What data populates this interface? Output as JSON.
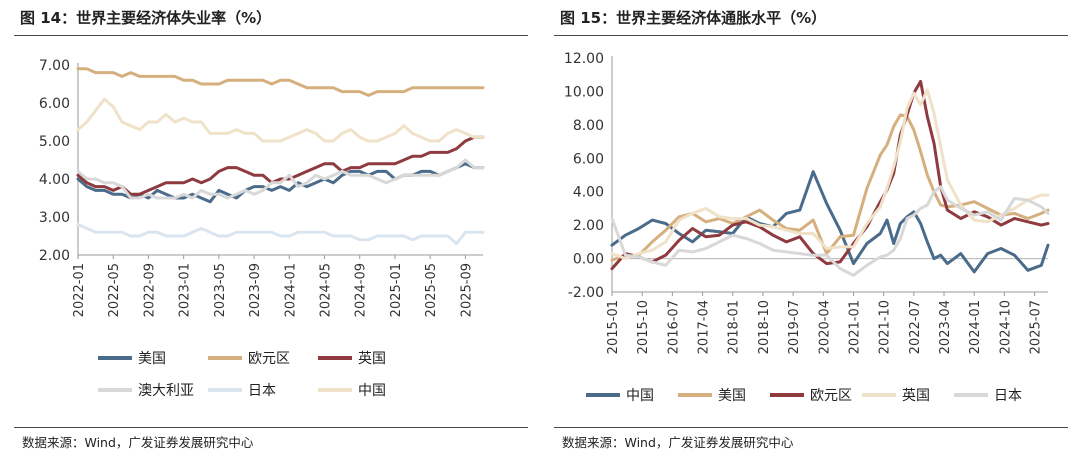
{
  "chart_data": [
    {
      "type": "line",
      "title": "图 14：世界主要经济体失业率（%）",
      "source": "数据来源：Wind，广发证券发展研究中心",
      "xlabel": "",
      "ylabel": "",
      "ylim": [
        2.0,
        7.0
      ],
      "yticks": [
        "7.00",
        "6.00",
        "5.00",
        "4.00",
        "3.00",
        "2.00"
      ],
      "ytick_values": [
        7,
        6,
        5,
        4,
        3,
        2
      ],
      "xticks": [
        "2022-01",
        "2022-05",
        "2022-09",
        "2023-01",
        "2023-05",
        "2023-09",
        "2024-01",
        "2024-05",
        "2024-09",
        "2025-01",
        "2025-05",
        "2025-09"
      ],
      "x_range": [
        0,
        46
      ],
      "xtick_positions": [
        0,
        4,
        8,
        12,
        16,
        20,
        24,
        28,
        32,
        36,
        40,
        44
      ],
      "series": [
        {
          "name": "美国",
          "color": "#4a6b89",
          "values": [
            4.0,
            3.8,
            3.7,
            3.7,
            3.6,
            3.6,
            3.5,
            3.6,
            3.5,
            3.7,
            3.6,
            3.5,
            3.5,
            3.6,
            3.5,
            3.4,
            3.7,
            3.6,
            3.5,
            3.7,
            3.8,
            3.8,
            3.7,
            3.8,
            3.7,
            3.9,
            3.8,
            3.9,
            4.0,
            3.9,
            4.1,
            4.2,
            4.2,
            4.1,
            4.2,
            4.2,
            4.0,
            4.1,
            4.1,
            4.2,
            4.2,
            4.1,
            4.2,
            4.3,
            4.4,
            4.3,
            4.3
          ]
        },
        {
          "name": "欧元区",
          "color": "#d5b07e",
          "values": [
            6.9,
            6.9,
            6.8,
            6.8,
            6.8,
            6.7,
            6.8,
            6.7,
            6.7,
            6.7,
            6.7,
            6.7,
            6.6,
            6.6,
            6.5,
            6.5,
            6.5,
            6.6,
            6.6,
            6.6,
            6.6,
            6.6,
            6.5,
            6.6,
            6.6,
            6.5,
            6.4,
            6.4,
            6.4,
            6.4,
            6.3,
            6.3,
            6.3,
            6.2,
            6.3,
            6.3,
            6.3,
            6.3,
            6.4,
            6.4,
            6.4,
            6.4,
            6.4,
            6.4,
            6.4,
            6.4,
            6.4
          ]
        },
        {
          "name": "英国",
          "color": "#8e3a3e",
          "values": [
            4.1,
            3.9,
            3.8,
            3.8,
            3.7,
            3.8,
            3.6,
            3.6,
            3.7,
            3.8,
            3.9,
            3.9,
            3.9,
            4.0,
            3.9,
            4.0,
            4.2,
            4.3,
            4.3,
            4.2,
            4.1,
            4.1,
            3.9,
            4.0,
            4.0,
            4.1,
            4.2,
            4.3,
            4.4,
            4.4,
            4.2,
            4.3,
            4.3,
            4.4,
            4.4,
            4.4,
            4.4,
            4.5,
            4.6,
            4.6,
            4.7,
            4.7,
            4.7,
            4.8,
            5.0,
            5.1,
            5.1
          ]
        },
        {
          "name": "澳大利亚",
          "color": "#d8d8d8",
          "values": [
            4.2,
            4.0,
            4.0,
            3.9,
            3.9,
            3.8,
            3.5,
            3.5,
            3.6,
            3.5,
            3.5,
            3.5,
            3.6,
            3.5,
            3.7,
            3.6,
            3.6,
            3.5,
            3.6,
            3.7,
            3.6,
            3.7,
            3.9,
            3.9,
            4.1,
            3.8,
            3.9,
            4.1,
            4.0,
            4.1,
            4.2,
            4.1,
            4.1,
            4.1,
            4.0,
            3.9,
            4.0,
            4.1,
            4.1,
            4.1,
            4.1,
            4.1,
            4.2,
            4.3,
            4.5,
            4.3,
            4.3
          ]
        },
        {
          "name": "日本",
          "color": "#dbe5f0",
          "values": [
            2.8,
            2.7,
            2.6,
            2.6,
            2.6,
            2.6,
            2.5,
            2.5,
            2.6,
            2.6,
            2.5,
            2.5,
            2.5,
            2.6,
            2.7,
            2.6,
            2.5,
            2.5,
            2.6,
            2.6,
            2.6,
            2.6,
            2.6,
            2.5,
            2.5,
            2.6,
            2.6,
            2.6,
            2.6,
            2.5,
            2.5,
            2.5,
            2.4,
            2.4,
            2.5,
            2.5,
            2.5,
            2.5,
            2.4,
            2.5,
            2.5,
            2.5,
            2.5,
            2.3,
            2.6,
            2.6,
            2.6
          ]
        },
        {
          "name": "中国",
          "color": "#f0e2c8",
          "values": [
            5.3,
            5.5,
            5.8,
            6.1,
            5.9,
            5.5,
            5.4,
            5.3,
            5.5,
            5.5,
            5.7,
            5.5,
            5.6,
            5.5,
            5.5,
            5.2,
            5.2,
            5.2,
            5.3,
            5.2,
            5.2,
            5.0,
            5.0,
            5.0,
            5.1,
            5.2,
            5.3,
            5.2,
            5.0,
            5.0,
            5.2,
            5.3,
            5.1,
            5.0,
            5.0,
            5.1,
            5.2,
            5.4,
            5.2,
            5.1,
            5.0,
            5.0,
            5.2,
            5.3,
            5.2,
            5.1,
            5.1
          ]
        }
      ],
      "legend": {
        "position": "bottom",
        "rows": [
          [
            "美国",
            "欧元区",
            "英国"
          ],
          [
            "澳大利亚",
            "日本",
            "中国"
          ]
        ]
      }
    },
    {
      "type": "line",
      "title": "图 15：世界主要经济体通胀水平（%）",
      "source": "数据来源：Wind，广发证券发展研究中心",
      "xlabel": "",
      "ylabel": "",
      "ylim": [
        -2.0,
        12.0
      ],
      "yticks": [
        "12.00",
        "10.00",
        "8.00",
        "6.00",
        "4.00",
        "2.00",
        "0.00",
        "-2.00"
      ],
      "ytick_values": [
        12,
        10,
        8,
        6,
        4,
        2,
        0,
        -2
      ],
      "xticks": [
        "2015-01",
        "2015-10",
        "2016-07",
        "2017-04",
        "2018-01",
        "2018-10",
        "2019-07",
        "2020-04",
        "2021-01",
        "2021-10",
        "2022-07",
        "2023-04",
        "2024-01",
        "2024-10",
        "2025-07"
      ],
      "x_range": [
        0,
        130
      ],
      "xtick_positions": [
        0,
        9,
        18,
        27,
        36,
        45,
        54,
        63,
        72,
        81,
        90,
        99,
        108,
        117,
        126
      ],
      "series_x": [
        0,
        4,
        8,
        12,
        16,
        20,
        24,
        28,
        32,
        36,
        40,
        44,
        48,
        52,
        56,
        60,
        64,
        68,
        72,
        76,
        80,
        82,
        84,
        86,
        88,
        90,
        92,
        94,
        96,
        98,
        100,
        104,
        108,
        112,
        116,
        120,
        124,
        128,
        130
      ],
      "series": [
        {
          "name": "中国",
          "color": "#4a6b89",
          "values": [
            0.8,
            1.4,
            1.8,
            2.3,
            2.1,
            1.5,
            1.0,
            1.7,
            1.6,
            1.5,
            2.5,
            2.1,
            1.9,
            2.7,
            2.9,
            5.2,
            3.3,
            1.7,
            -0.3,
            0.9,
            1.5,
            2.3,
            0.9,
            2.1,
            2.5,
            2.8,
            2.1,
            1.0,
            0.0,
            0.2,
            -0.3,
            0.3,
            -0.8,
            0.3,
            0.6,
            0.2,
            -0.7,
            -0.4,
            0.8
          ]
        },
        {
          "name": "美国",
          "color": "#d5b07e",
          "values": [
            -0.1,
            0.2,
            0.2,
            1.0,
            1.7,
            2.5,
            2.7,
            2.2,
            2.4,
            2.1,
            2.5,
            2.9,
            2.3,
            1.8,
            1.7,
            2.3,
            0.3,
            1.3,
            1.4,
            4.2,
            6.2,
            6.8,
            7.9,
            8.6,
            8.5,
            7.7,
            6.4,
            5.0,
            4.0,
            3.2,
            3.1,
            3.2,
            3.4,
            3.0,
            2.6,
            2.7,
            2.4,
            2.7,
            2.9
          ]
        },
        {
          "name": "欧元区",
          "color": "#8e3a3e",
          "values": [
            -0.6,
            0.3,
            0.1,
            -0.2,
            0.2,
            1.1,
            1.8,
            1.3,
            1.4,
            2.0,
            2.2,
            1.9,
            1.4,
            1.0,
            1.3,
            0.3,
            -0.3,
            -0.2,
            0.9,
            1.9,
            3.4,
            4.1,
            5.1,
            7.4,
            8.6,
            9.9,
            10.6,
            8.5,
            6.9,
            4.3,
            2.9,
            2.4,
            2.8,
            2.5,
            2.0,
            2.4,
            2.2,
            2.0,
            2.1
          ]
        },
        {
          "name": "英国",
          "color": "#f0e2c8",
          "values": [
            0.3,
            0.0,
            0.3,
            0.5,
            1.0,
            2.3,
            2.7,
            3.0,
            2.5,
            2.4,
            2.4,
            2.0,
            1.9,
            1.7,
            1.5,
            1.5,
            0.6,
            0.7,
            0.7,
            2.1,
            3.1,
            4.2,
            5.5,
            7.0,
            9.0,
            9.9,
            9.2,
            10.1,
            8.7,
            6.7,
            4.7,
            3.2,
            2.3,
            2.2,
            2.6,
            3.0,
            3.5,
            3.8,
            3.8
          ]
        },
        {
          "name": "日本",
          "color": "#d8d8d8",
          "values": [
            2.4,
            0.2,
            0.1,
            -0.2,
            -0.4,
            0.5,
            0.4,
            0.6,
            1.0,
            1.4,
            1.2,
            0.9,
            0.5,
            0.4,
            0.3,
            0.2,
            0.2,
            -0.6,
            -1.0,
            -0.4,
            0.1,
            0.2,
            0.5,
            1.2,
            2.4,
            2.6,
            3.0,
            3.2,
            4.0,
            4.3,
            3.5,
            3.0,
            2.6,
            2.8,
            2.3,
            3.6,
            3.5,
            3.1,
            2.7
          ]
        }
      ],
      "legend": {
        "position": "bottom",
        "rows": [
          [
            "中国",
            "美国",
            "欧元区",
            "英国",
            "日本"
          ]
        ]
      }
    }
  ]
}
